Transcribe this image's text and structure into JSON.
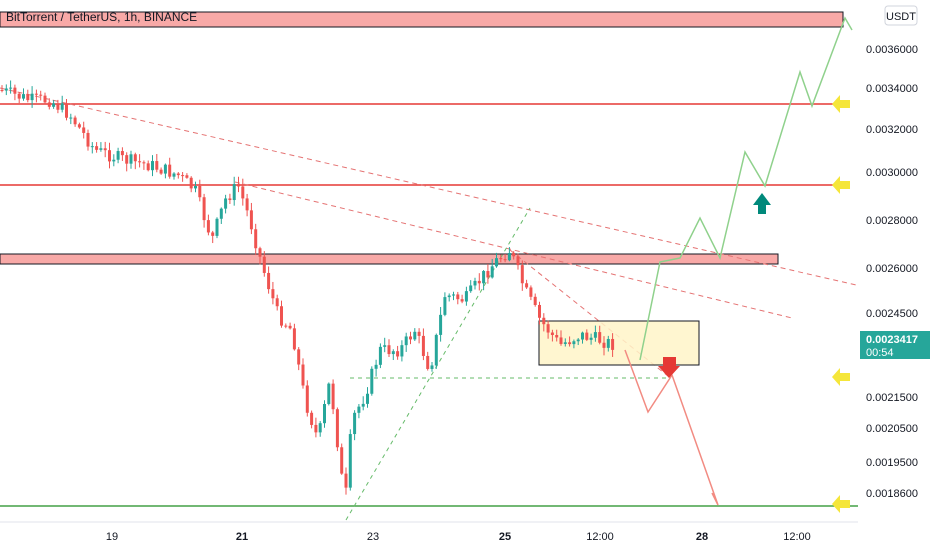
{
  "chart_data": {
    "type": "candlestick",
    "title": "BitTorrent / TetherUS, 1h, BINANCE",
    "currency_label": "USDT",
    "y_ticks": [
      "0.0036000",
      "0.0034000",
      "0.0032000",
      "0.0030000",
      "0.0028000",
      "0.0026000",
      "0.0024500",
      "0.0021500",
      "0.0020500",
      "0.0019500",
      "0.0018600"
    ],
    "x_ticks": [
      "19",
      "21",
      "23",
      "25",
      "12:00",
      "28",
      "12:00"
    ],
    "price_label": "0.0023417",
    "countdown": "00:54",
    "colors": {
      "up": "#26a69a",
      "down": "#ef5350",
      "resistance": "#e53935",
      "support": "#43a047",
      "zone": "#f8a9a7",
      "box": "#fff5c8",
      "projection_up": "#8fd18c",
      "projection_down": "#f28b82",
      "arrow_marker": "#f5e63a"
    }
  }
}
